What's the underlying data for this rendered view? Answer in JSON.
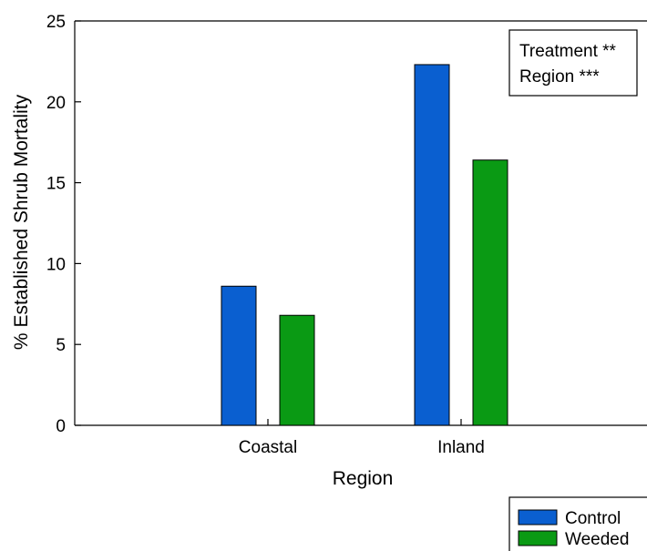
{
  "chart_data": {
    "type": "bar",
    "categories": [
      "Coastal",
      "Inland"
    ],
    "series": [
      {
        "name": "Control",
        "color": "#0a5fd0",
        "values": [
          8.6,
          22.3
        ]
      },
      {
        "name": "Weeded",
        "color": "#0a9a14",
        "values": [
          6.8,
          16.4
        ]
      }
    ],
    "xlabel": "Region",
    "ylabel": "% Established Shrub Mortality",
    "ylim": [
      0,
      25
    ],
    "yticks": [
      0,
      5,
      10,
      15,
      20,
      25
    ],
    "grid": false,
    "annotations": [
      "Treatment **",
      "Region ***"
    ],
    "legend_placement": "bottom-right, outside plot"
  }
}
